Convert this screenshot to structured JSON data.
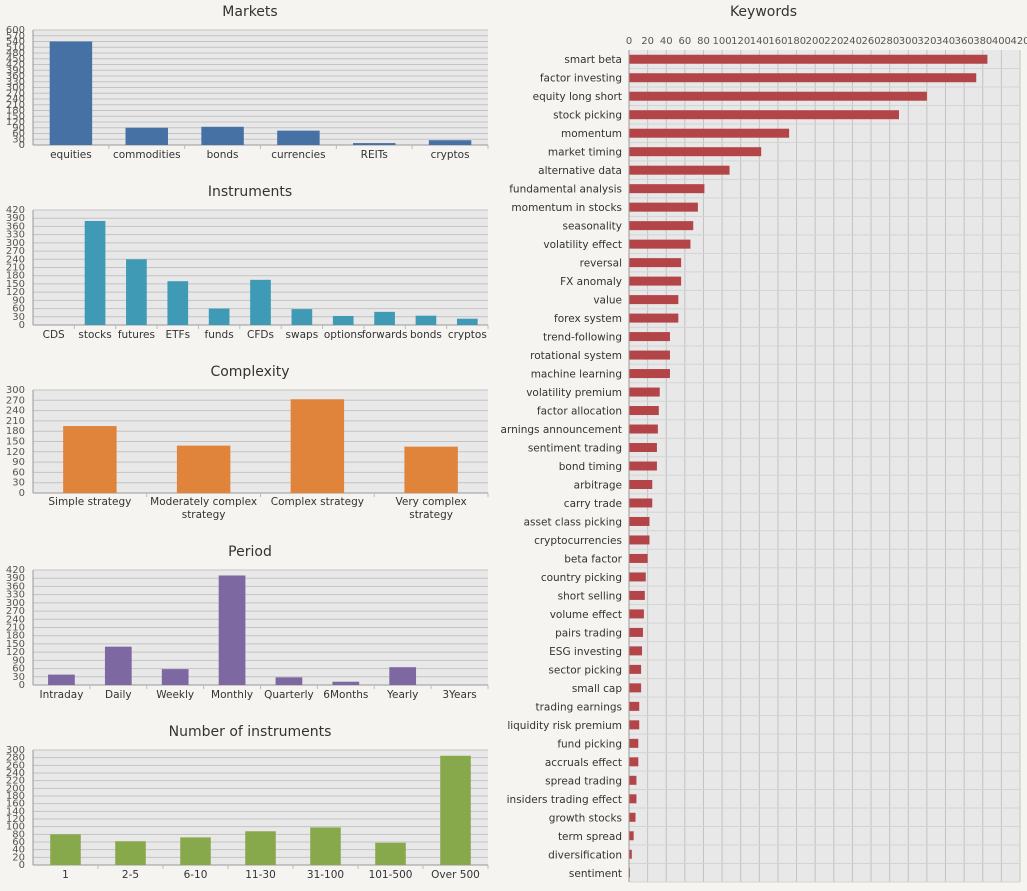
{
  "chart_data": [
    {
      "type": "bar",
      "title": "Markets",
      "color": "#4671a5",
      "categories": [
        "equities",
        "commodities",
        "bonds",
        "currencies",
        "REITs",
        "cryptos"
      ],
      "values": [
        540,
        90,
        95,
        75,
        10,
        25
      ],
      "yticks": [
        0,
        30,
        60,
        90,
        120,
        150,
        180,
        210,
        240,
        270,
        300,
        330,
        360,
        390,
        420,
        450,
        480,
        510,
        540,
        570,
        600
      ],
      "ylim": [
        0,
        600
      ]
    },
    {
      "type": "bar",
      "title": "Instruments",
      "color": "#3f9ab5",
      "categories": [
        "CDS",
        "stocks",
        "futures",
        "ETFs",
        "funds",
        "CFDs",
        "swaps",
        "options",
        "forwards",
        "bonds",
        "cryptos"
      ],
      "values": [
        0,
        380,
        240,
        160,
        60,
        165,
        58,
        33,
        48,
        34,
        23
      ],
      "yticks": [
        0,
        30,
        60,
        90,
        120,
        150,
        180,
        210,
        240,
        270,
        300,
        330,
        360,
        390,
        420
      ],
      "ylim": [
        0,
        420
      ]
    },
    {
      "type": "bar",
      "title": "Complexity",
      "color": "#e0833b",
      "categories": [
        "Simple strategy",
        "Moderately complex strategy",
        "Complex strategy",
        "Very complex strategy"
      ],
      "values": [
        195,
        138,
        273,
        135
      ],
      "yticks": [
        0,
        30,
        60,
        90,
        120,
        150,
        180,
        210,
        240,
        270,
        300
      ],
      "ylim": [
        0,
        300
      ]
    },
    {
      "type": "bar",
      "title": "Period",
      "color": "#7d68a1",
      "categories": [
        "Intraday",
        "Daily",
        "Weekly",
        "Monthly",
        "Quarterly",
        "6Months",
        "Yearly",
        "3Years"
      ],
      "values": [
        38,
        140,
        58,
        400,
        28,
        12,
        65,
        0
      ],
      "yticks": [
        0,
        30,
        60,
        90,
        120,
        150,
        180,
        210,
        240,
        270,
        300,
        330,
        360,
        390,
        420
      ],
      "ylim": [
        0,
        420
      ]
    },
    {
      "type": "bar",
      "title": "Number of instruments",
      "color": "#88a84c",
      "categories": [
        "1",
        "2-5",
        "6-10",
        "11-30",
        "31-100",
        "101-500",
        "Over 500"
      ],
      "values": [
        80,
        62,
        72,
        88,
        98,
        58,
        285
      ],
      "yticks": [
        0,
        20,
        40,
        60,
        80,
        100,
        120,
        140,
        160,
        180,
        200,
        220,
        240,
        260,
        280,
        300
      ],
      "ylim": [
        0,
        300
      ]
    },
    {
      "type": "bar",
      "orientation": "horizontal",
      "title": "Keywords",
      "color": "#b34548",
      "categories": [
        "smart beta",
        "factor investing",
        "equity long short",
        "stock picking",
        "momentum",
        "market timing",
        "alternative data",
        "fundamental analysis",
        "momentum in stocks",
        "seasonality",
        "volatility effect",
        "reversal",
        "FX anomaly",
        "value",
        "forex system",
        "trend-following",
        "rotational system",
        "machine learning",
        "volatility premium",
        "factor allocation",
        "earnings announcement",
        "sentiment trading",
        "bond timing",
        "arbitrage",
        "carry trade",
        "asset class picking",
        "cryptocurrencies",
        "beta factor",
        "country picking",
        "short selling",
        "volume effect",
        "pairs trading",
        "ESG investing",
        "sector picking",
        "small cap",
        "trading earnings",
        "liquidity risk premium",
        "fund picking",
        "accruals effect",
        "spread trading",
        "insiders trading effect",
        "growth stocks",
        "term spread",
        "diversification",
        "sentiment"
      ],
      "values": [
        385,
        373,
        320,
        290,
        172,
        142,
        108,
        81,
        74,
        69,
        66,
        56,
        56,
        53,
        53,
        44,
        44,
        44,
        33,
        32,
        31,
        30,
        30,
        25,
        25,
        22,
        22,
        20,
        18,
        17,
        16,
        15,
        14,
        13,
        13,
        11,
        11,
        10,
        10,
        8,
        8,
        7,
        5,
        3,
        1
      ],
      "xticks": [
        0,
        20,
        40,
        60,
        80,
        100,
        120,
        140,
        160,
        180,
        200,
        220,
        240,
        260,
        280,
        300,
        320,
        340,
        360,
        380,
        400,
        420
      ],
      "xlim": [
        0,
        420
      ]
    }
  ]
}
